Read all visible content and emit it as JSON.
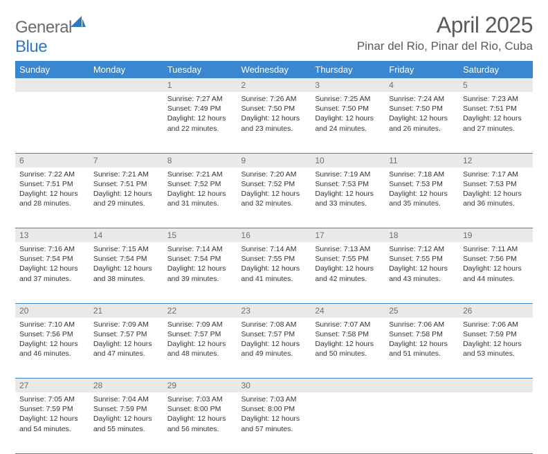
{
  "brand": {
    "name_part1": "General",
    "name_part2": "Blue",
    "logo_color": "#2f78c4",
    "text_color": "#6b6b6b"
  },
  "header": {
    "title": "April 2025",
    "location": "Pinar del Rio, Pinar del Rio, Cuba"
  },
  "colors": {
    "header_bg": "#3a87d1",
    "header_text": "#ffffff",
    "daynum_bg": "#e9e9e9",
    "daynum_text": "#6f6f6f",
    "body_text": "#333333",
    "rule": "#3a87d1"
  },
  "day_labels": [
    "Sunday",
    "Monday",
    "Tuesday",
    "Wednesday",
    "Thursday",
    "Friday",
    "Saturday"
  ],
  "weeks": [
    [
      null,
      null,
      {
        "n": "1",
        "sr": "7:27 AM",
        "ss": "7:49 PM",
        "dl": "12 hours and 22 minutes."
      },
      {
        "n": "2",
        "sr": "7:26 AM",
        "ss": "7:50 PM",
        "dl": "12 hours and 23 minutes."
      },
      {
        "n": "3",
        "sr": "7:25 AM",
        "ss": "7:50 PM",
        "dl": "12 hours and 24 minutes."
      },
      {
        "n": "4",
        "sr": "7:24 AM",
        "ss": "7:50 PM",
        "dl": "12 hours and 26 minutes."
      },
      {
        "n": "5",
        "sr": "7:23 AM",
        "ss": "7:51 PM",
        "dl": "12 hours and 27 minutes."
      }
    ],
    [
      {
        "n": "6",
        "sr": "7:22 AM",
        "ss": "7:51 PM",
        "dl": "12 hours and 28 minutes."
      },
      {
        "n": "7",
        "sr": "7:21 AM",
        "ss": "7:51 PM",
        "dl": "12 hours and 29 minutes."
      },
      {
        "n": "8",
        "sr": "7:21 AM",
        "ss": "7:52 PM",
        "dl": "12 hours and 31 minutes."
      },
      {
        "n": "9",
        "sr": "7:20 AM",
        "ss": "7:52 PM",
        "dl": "12 hours and 32 minutes."
      },
      {
        "n": "10",
        "sr": "7:19 AM",
        "ss": "7:53 PM",
        "dl": "12 hours and 33 minutes."
      },
      {
        "n": "11",
        "sr": "7:18 AM",
        "ss": "7:53 PM",
        "dl": "12 hours and 35 minutes."
      },
      {
        "n": "12",
        "sr": "7:17 AM",
        "ss": "7:53 PM",
        "dl": "12 hours and 36 minutes."
      }
    ],
    [
      {
        "n": "13",
        "sr": "7:16 AM",
        "ss": "7:54 PM",
        "dl": "12 hours and 37 minutes."
      },
      {
        "n": "14",
        "sr": "7:15 AM",
        "ss": "7:54 PM",
        "dl": "12 hours and 38 minutes."
      },
      {
        "n": "15",
        "sr": "7:14 AM",
        "ss": "7:54 PM",
        "dl": "12 hours and 39 minutes."
      },
      {
        "n": "16",
        "sr": "7:14 AM",
        "ss": "7:55 PM",
        "dl": "12 hours and 41 minutes."
      },
      {
        "n": "17",
        "sr": "7:13 AM",
        "ss": "7:55 PM",
        "dl": "12 hours and 42 minutes."
      },
      {
        "n": "18",
        "sr": "7:12 AM",
        "ss": "7:55 PM",
        "dl": "12 hours and 43 minutes."
      },
      {
        "n": "19",
        "sr": "7:11 AM",
        "ss": "7:56 PM",
        "dl": "12 hours and 44 minutes."
      }
    ],
    [
      {
        "n": "20",
        "sr": "7:10 AM",
        "ss": "7:56 PM",
        "dl": "12 hours and 46 minutes."
      },
      {
        "n": "21",
        "sr": "7:09 AM",
        "ss": "7:57 PM",
        "dl": "12 hours and 47 minutes."
      },
      {
        "n": "22",
        "sr": "7:09 AM",
        "ss": "7:57 PM",
        "dl": "12 hours and 48 minutes."
      },
      {
        "n": "23",
        "sr": "7:08 AM",
        "ss": "7:57 PM",
        "dl": "12 hours and 49 minutes."
      },
      {
        "n": "24",
        "sr": "7:07 AM",
        "ss": "7:58 PM",
        "dl": "12 hours and 50 minutes."
      },
      {
        "n": "25",
        "sr": "7:06 AM",
        "ss": "7:58 PM",
        "dl": "12 hours and 51 minutes."
      },
      {
        "n": "26",
        "sr": "7:06 AM",
        "ss": "7:59 PM",
        "dl": "12 hours and 53 minutes."
      }
    ],
    [
      {
        "n": "27",
        "sr": "7:05 AM",
        "ss": "7:59 PM",
        "dl": "12 hours and 54 minutes."
      },
      {
        "n": "28",
        "sr": "7:04 AM",
        "ss": "7:59 PM",
        "dl": "12 hours and 55 minutes."
      },
      {
        "n": "29",
        "sr": "7:03 AM",
        "ss": "8:00 PM",
        "dl": "12 hours and 56 minutes."
      },
      {
        "n": "30",
        "sr": "7:03 AM",
        "ss": "8:00 PM",
        "dl": "12 hours and 57 minutes."
      },
      null,
      null,
      null
    ]
  ],
  "labels": {
    "sunrise": "Sunrise:",
    "sunset": "Sunset:",
    "daylight": "Daylight:"
  }
}
